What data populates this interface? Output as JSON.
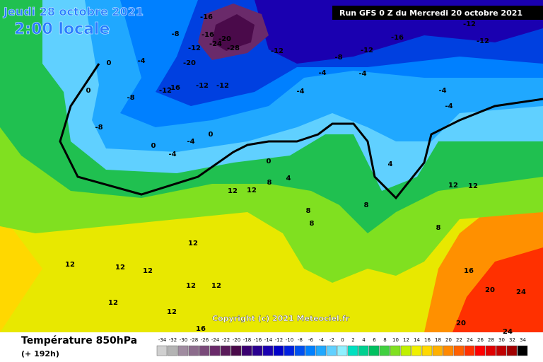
{
  "header": {
    "date": "Jeudi 28 octobre 2021",
    "time": "2:00 locale",
    "run": "Run GFS 0 Z du Mercredi 20 octobre 2021"
  },
  "copyright": "Copyright (c) 2021 Meteociel.fr",
  "footer": {
    "title": "Température 850hPa",
    "lead": "(+ 192h)"
  },
  "color_scale": [
    {
      "value": -34,
      "color": "#d0d0d0"
    },
    {
      "value": -32,
      "color": "#b4b4b4"
    },
    {
      "value": -30,
      "color": "#a08ca0"
    },
    {
      "value": -28,
      "color": "#8c6c8c"
    },
    {
      "value": -26,
      "color": "#7a4a7a"
    },
    {
      "value": -24,
      "color": "#6a2a6a"
    },
    {
      "value": -22,
      "color": "#5a1a5a"
    },
    {
      "value": -20,
      "color": "#4a0a4a"
    },
    {
      "value": -18,
      "color": "#3a0070"
    },
    {
      "value": -16,
      "color": "#2a0090"
    },
    {
      "value": -14,
      "color": "#1a00b0"
    },
    {
      "value": -12,
      "color": "#0000c8"
    },
    {
      "value": -10,
      "color": "#0020e0"
    },
    {
      "value": -8,
      "color": "#0050f0"
    },
    {
      "value": -6,
      "color": "#0080ff"
    },
    {
      "value": -4,
      "color": "#20a8ff"
    },
    {
      "value": -2,
      "color": "#60d0ff"
    },
    {
      "value": 0,
      "color": "#90f0ff"
    },
    {
      "value": 2,
      "color": "#00e0c0"
    },
    {
      "value": 4,
      "color": "#00d090"
    },
    {
      "value": 6,
      "color": "#00c060"
    },
    {
      "value": 8,
      "color": "#40d040"
    },
    {
      "value": 10,
      "color": "#80e020"
    },
    {
      "value": 12,
      "color": "#c0f000"
    },
    {
      "value": 14,
      "color": "#f0f000"
    },
    {
      "value": 16,
      "color": "#ffd800"
    },
    {
      "value": 18,
      "color": "#ffb000"
    },
    {
      "value": 20,
      "color": "#ff8800"
    },
    {
      "value": 22,
      "color": "#ff6000"
    },
    {
      "value": 24,
      "color": "#ff3000"
    },
    {
      "value": 26,
      "color": "#ff0000"
    },
    {
      "value": 28,
      "color": "#e00000"
    },
    {
      "value": 30,
      "color": "#c00000"
    },
    {
      "value": 32,
      "color": "#a00000"
    },
    {
      "value": 34,
      "color": "#000000"
    }
  ],
  "map_labels": [
    "-16",
    "-16",
    "-8",
    "-20",
    "-24",
    "-28",
    "-12",
    "-20",
    "-12",
    "-16",
    "-12",
    "-12",
    "-8",
    "-8",
    "0",
    "0",
    "-4",
    "-12",
    "-16",
    "-12",
    "-8",
    "-12",
    "-12",
    "-4",
    "-4",
    "-4",
    "-4",
    "-4",
    "0",
    "-4",
    "-4",
    "0",
    "0",
    "4",
    "4",
    "8",
    "12",
    "12",
    "12",
    "12",
    "8",
    "8",
    "12",
    "12",
    "12",
    "12",
    "12",
    "12",
    "16",
    "20",
    "24",
    "24",
    "20",
    "12",
    "12",
    "16",
    "8",
    "8"
  ]
}
